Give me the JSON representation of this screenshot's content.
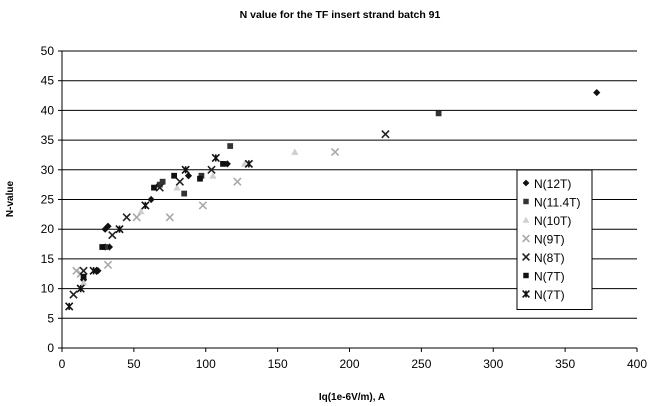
{
  "chart_data": {
    "type": "scatter",
    "title": "N value for the TF insert strand batch 91",
    "xlabel": "Iq(1e-6V/m), A",
    "ylabel": "N-value",
    "xlim": [
      0,
      400
    ],
    "ylim": [
      0,
      50
    ],
    "x_ticks": [
      "0",
      "50",
      "100",
      "150",
      "200",
      "250",
      "300",
      "350",
      "400"
    ],
    "y_ticks": [
      "0",
      "5",
      "10",
      "15",
      "20",
      "25",
      "30",
      "35",
      "40",
      "45",
      "50"
    ],
    "grid": "horizontal",
    "legend_position": "right",
    "series": [
      {
        "name": "N(12T)",
        "marker": "diamond",
        "color": "#111111",
        "points": [
          [
            30,
            20
          ],
          [
            32,
            20.5
          ],
          [
            30,
            17
          ],
          [
            33,
            17
          ],
          [
            25,
            13
          ],
          [
            15,
            11.5
          ],
          [
            62,
            25
          ],
          [
            88,
            29
          ],
          [
            115,
            31
          ],
          [
            372,
            43
          ]
        ]
      },
      {
        "name": "N(11.4T)",
        "marker": "square",
        "color": "#333333",
        "points": [
          [
            30,
            17
          ],
          [
            68,
            27.5
          ],
          [
            70,
            28
          ],
          [
            85,
            26
          ],
          [
            97,
            29
          ],
          [
            117,
            34
          ],
          [
            262,
            39.5
          ]
        ]
      },
      {
        "name": "N(10T)",
        "marker": "triangle",
        "color": "#cfcfcf",
        "points": [
          [
            15,
            11
          ],
          [
            55,
            23
          ],
          [
            80,
            27
          ],
          [
            105,
            29
          ],
          [
            127,
            31
          ],
          [
            162,
            33
          ]
        ]
      },
      {
        "name": "N(9T)",
        "marker": "x",
        "color": "#aaaaaa",
        "points": [
          [
            10,
            13
          ],
          [
            13,
            12.5
          ],
          [
            32,
            14
          ],
          [
            52,
            22
          ],
          [
            75,
            22
          ],
          [
            98,
            24
          ],
          [
            122,
            28
          ],
          [
            190,
            33
          ]
        ]
      },
      {
        "name": "N(8T)",
        "marker": "x",
        "color": "#222222",
        "points": [
          [
            8,
            9
          ],
          [
            15,
            13
          ],
          [
            35,
            19
          ],
          [
            45,
            22
          ],
          [
            68,
            27
          ],
          [
            82,
            28
          ],
          [
            104,
            30
          ],
          [
            225,
            36
          ]
        ]
      },
      {
        "name": "N(7T)",
        "marker": "square",
        "color": "#111111",
        "points": [
          [
            15,
            12
          ],
          [
            28,
            17
          ],
          [
            64,
            27
          ],
          [
            78,
            29
          ],
          [
            96,
            28.5
          ],
          [
            112,
            31
          ]
        ]
      },
      {
        "name": "N(7T)",
        "marker": "star",
        "color": "#111111",
        "points": [
          [
            5,
            7
          ],
          [
            13,
            10
          ],
          [
            22,
            13
          ],
          [
            40,
            20
          ],
          [
            58,
            24
          ],
          [
            86,
            30
          ],
          [
            107,
            32
          ],
          [
            130,
            31
          ]
        ]
      }
    ]
  }
}
